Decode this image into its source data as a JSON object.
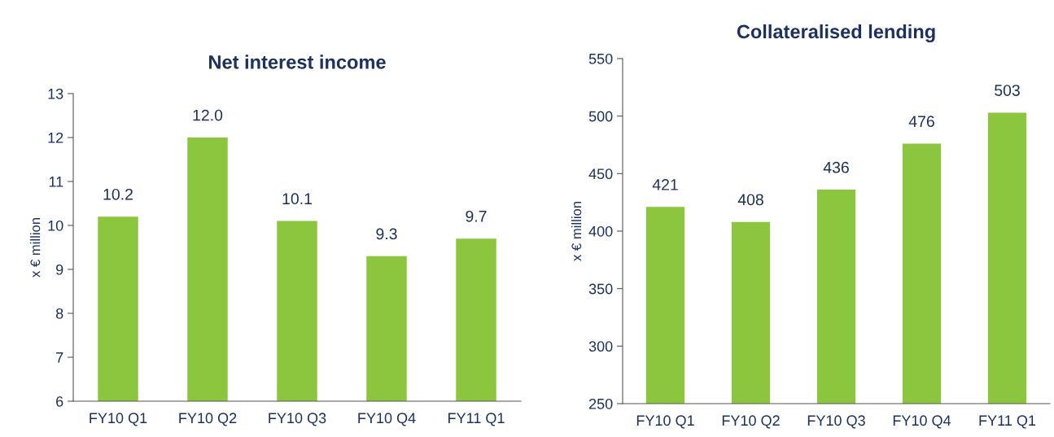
{
  "chart_data": [
    {
      "type": "bar",
      "title": "Net interest income",
      "ylabel": "x € million",
      "categories": [
        "FY10 Q1",
        "FY10 Q2",
        "FY10 Q3",
        "FY10 Q4",
        "FY11 Q1"
      ],
      "values": [
        10.2,
        12.0,
        10.1,
        9.3,
        9.7
      ],
      "value_labels": [
        "10.2",
        "12.0",
        "10.1",
        "9.3",
        "9.7"
      ],
      "color": "#8cc63f",
      "ylim": [
        6,
        13
      ],
      "yticks": [
        6,
        7,
        8,
        9,
        10,
        11,
        12,
        13
      ],
      "grid": false,
      "legend": false
    },
    {
      "type": "bar",
      "title": "Collateralised lending",
      "ylabel": "x € million",
      "categories": [
        "FY10 Q1",
        "FY10 Q2",
        "FY10 Q3",
        "FY10 Q4",
        "FY11 Q1"
      ],
      "values": [
        421,
        408,
        436,
        476,
        503
      ],
      "data_labels": true,
      "color": "#8cc63f",
      "ylim": [
        250,
        550
      ],
      "yticks": [
        250,
        300,
        350,
        400,
        450,
        500,
        550
      ],
      "grid": false,
      "legend": false
    }
  ]
}
